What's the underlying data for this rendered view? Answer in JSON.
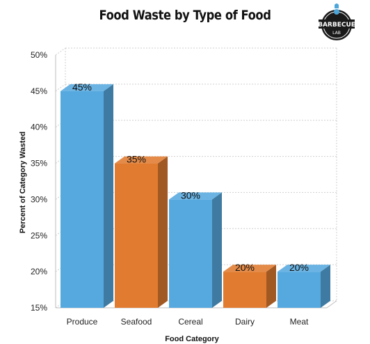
{
  "chart_data": {
    "type": "bar",
    "title": "Food Waste by Type of Food",
    "xlabel": "Food Category",
    "ylabel": "Percent of Category Wasted",
    "categories": [
      "Produce",
      "Seafood",
      "Cereal",
      "Dairy",
      "Meat"
    ],
    "values": [
      45,
      35,
      30,
      20,
      20
    ],
    "data_labels": [
      "45%",
      "35%",
      "30%",
      "20%",
      "20%"
    ],
    "bar_colors": [
      "#56a9df",
      "#e07b30",
      "#56a9df",
      "#e07b30",
      "#56a9df"
    ],
    "ylim": [
      15,
      50
    ],
    "yticks": [
      "15%",
      "20%",
      "25%",
      "30%",
      "35%",
      "40%",
      "45%",
      "50%"
    ],
    "grid": true,
    "style": "3d"
  },
  "logo": {
    "line1": "BARBECUE",
    "line2": "LAB"
  }
}
